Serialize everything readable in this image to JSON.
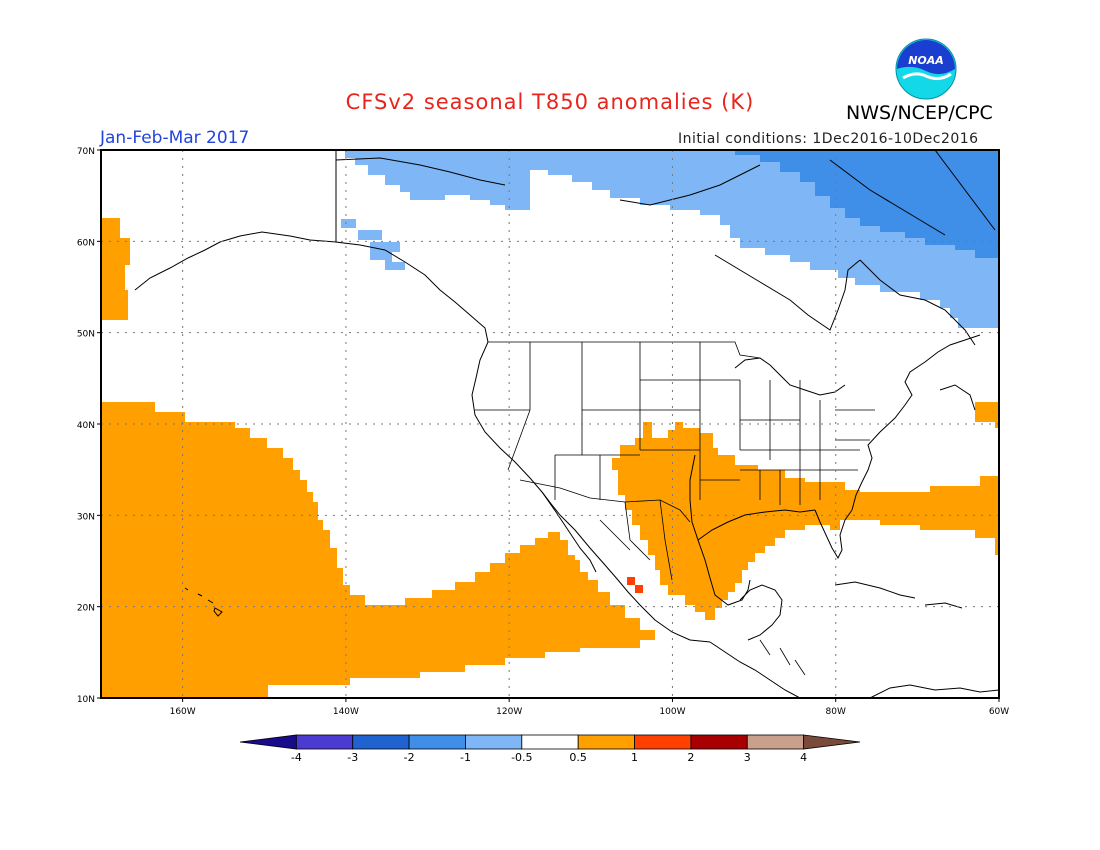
{
  "header": {
    "title": "CFSv2 seasonal T850 anomalies (K)",
    "org": "NWS/NCEP/CPC",
    "logo_text": "NOAA",
    "season": "Jan-Feb-Mar 2017",
    "initial_conditions": "Initial conditions: 1Dec2016-10Dec2016"
  },
  "map": {
    "lat_labels": [
      "70N",
      "60N",
      "50N",
      "40N",
      "30N",
      "20N",
      "10N"
    ],
    "lon_labels": [
      "160W",
      "140W",
      "120W",
      "100W",
      "80W",
      "60W"
    ],
    "lat_range": [
      10,
      70
    ],
    "lon_range": [
      -170,
      -60
    ],
    "grid": true
  },
  "colorbar": {
    "labels": [
      "-4",
      "-3",
      "-2",
      "-1",
      "-0.5",
      "0.5",
      "1",
      "2",
      "3",
      "4"
    ],
    "colors": [
      "#1a0a8c",
      "#4b3bd1",
      "#1f62d0",
      "#3f8ee8",
      "#7fb6f5",
      "#ffffff",
      "#ffa000",
      "#ff4000",
      "#a80000",
      "#c8a08c",
      "#7a4a3a"
    ]
  },
  "colors": {
    "warm_1": "#ffa000",
    "warm_2": "#ff4000",
    "cool_1": "#7fb6f5",
    "cool_2": "#3f8ee8"
  }
}
